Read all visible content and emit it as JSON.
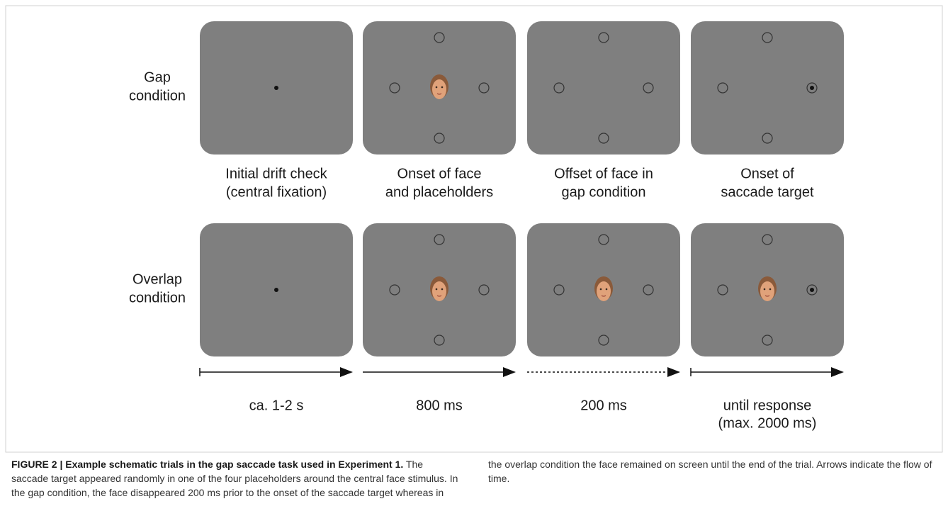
{
  "rows": [
    {
      "label": [
        "Gap",
        "condition"
      ]
    },
    {
      "label": [
        "Overlap",
        "condition"
      ]
    }
  ],
  "columns": [
    {
      "label": [
        "Initial drift check",
        "(central fixation)"
      ],
      "duration": [
        "ca. 1-2 s"
      ]
    },
    {
      "label": [
        "Onset of face",
        "and placeholders"
      ],
      "duration": [
        "800 ms"
      ]
    },
    {
      "label": [
        "Offset of face in",
        "gap condition"
      ],
      "duration": [
        "200 ms"
      ]
    },
    {
      "label": [
        "Onset of",
        "saccade target"
      ],
      "duration": [
        "until response",
        "(max. 2000 ms)"
      ]
    }
  ],
  "caption": {
    "title": "FIGURE 2 | Example schematic trials in the gap saccade task used in Experiment 1.",
    "body": "The saccade target appeared randomly in one of the four placeholders around the central face stimulus. In the gap condition, the face disappeared 200 ms prior to the onset of the saccade target whereas in the overlap condition the face remained on screen until the end of the trial. Arrows indicate the flow of time."
  }
}
